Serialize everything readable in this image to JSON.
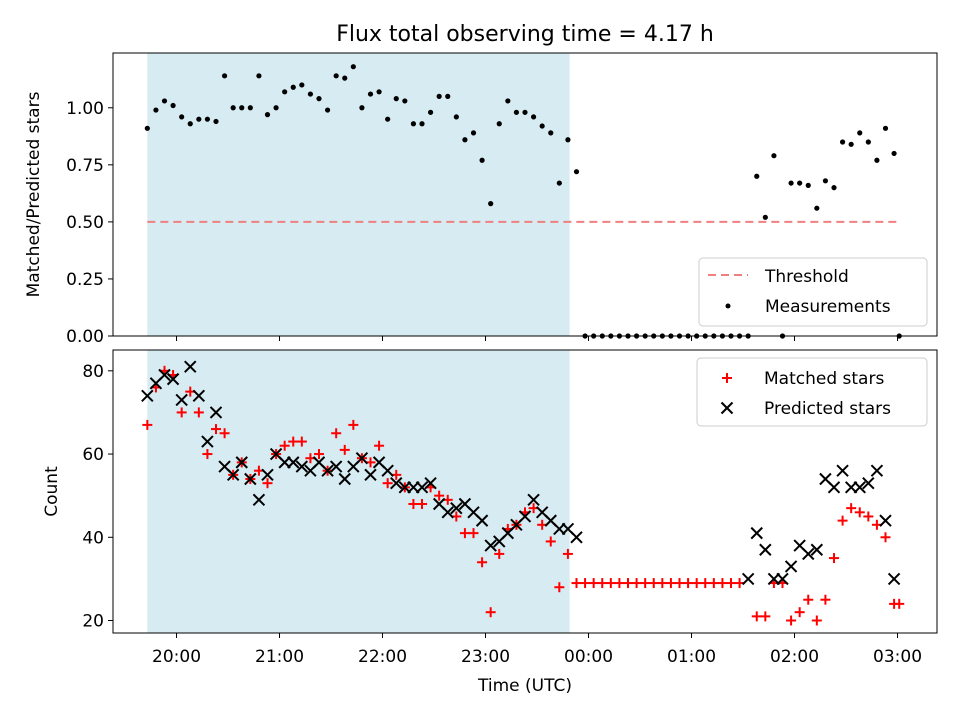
{
  "chart_data": [
    {
      "type": "scatter",
      "title": "Flux total observing time = 4.17 h",
      "xlabel": "",
      "ylabel": "Matched/Predicted stars",
      "ylim": [
        0,
        1.24
      ],
      "xlim": [
        "19:23",
        "03:23"
      ],
      "shaded_span": {
        "start": "19:43",
        "end": "23:49"
      },
      "yticks": [
        "0.00",
        "0.25",
        "0.50",
        "0.75",
        "1.00"
      ],
      "legend_position": "lower-right",
      "legend": [
        "Threshold",
        "Measurements"
      ],
      "threshold": {
        "name": "Threshold",
        "y": 0.5,
        "x_start": "19:43",
        "x_end": "03:01",
        "color": "#f08080"
      },
      "series": [
        {
          "name": "Measurements",
          "marker": "dot",
          "color": "#000000",
          "points": [
            [
              "19:43",
              0.91
            ],
            [
              "19:48",
              0.99
            ],
            [
              "19:53",
              1.03
            ],
            [
              "19:58",
              1.01
            ],
            [
              "20:03",
              0.96
            ],
            [
              "20:08",
              0.93
            ],
            [
              "20:13",
              0.95
            ],
            [
              "20:18",
              0.95
            ],
            [
              "20:23",
              0.94
            ],
            [
              "20:28",
              1.14
            ],
            [
              "20:33",
              1.0
            ],
            [
              "20:38",
              1.0
            ],
            [
              "20:43",
              1.0
            ],
            [
              "20:48",
              1.14
            ],
            [
              "20:53",
              0.97
            ],
            [
              "20:58",
              1.0
            ],
            [
              "21:03",
              1.07
            ],
            [
              "21:08",
              1.09
            ],
            [
              "21:13",
              1.1
            ],
            [
              "21:18",
              1.06
            ],
            [
              "21:23",
              1.04
            ],
            [
              "21:28",
              0.99
            ],
            [
              "21:33",
              1.14
            ],
            [
              "21:38",
              1.13
            ],
            [
              "21:43",
              1.18
            ],
            [
              "21:48",
              1.0
            ],
            [
              "21:53",
              1.06
            ],
            [
              "21:58",
              1.07
            ],
            [
              "22:03",
              0.95
            ],
            [
              "22:08",
              1.04
            ],
            [
              "22:13",
              1.03
            ],
            [
              "22:18",
              0.93
            ],
            [
              "22:23",
              0.93
            ],
            [
              "22:28",
              0.98
            ],
            [
              "22:33",
              1.05
            ],
            [
              "22:38",
              1.05
            ],
            [
              "22:43",
              0.96
            ],
            [
              "22:48",
              0.86
            ],
            [
              "22:53",
              0.89
            ],
            [
              "22:58",
              0.77
            ],
            [
              "23:03",
              0.58
            ],
            [
              "23:08",
              0.93
            ],
            [
              "23:13",
              1.03
            ],
            [
              "23:18",
              0.98
            ],
            [
              "23:23",
              0.98
            ],
            [
              "23:28",
              0.96
            ],
            [
              "23:33",
              0.92
            ],
            [
              "23:38",
              0.89
            ],
            [
              "23:43",
              0.67
            ],
            [
              "23:48",
              0.86
            ],
            [
              "23:53",
              0.72
            ],
            [
              "23:58",
              0.0
            ],
            [
              "00:03",
              0.0
            ],
            [
              "00:08",
              0.0
            ],
            [
              "00:13",
              0.0
            ],
            [
              "00:18",
              0.0
            ],
            [
              "00:23",
              0.0
            ],
            [
              "00:28",
              0.0
            ],
            [
              "00:33",
              0.0
            ],
            [
              "00:38",
              0.0
            ],
            [
              "00:43",
              0.0
            ],
            [
              "00:48",
              0.0
            ],
            [
              "00:53",
              0.0
            ],
            [
              "00:58",
              0.0
            ],
            [
              "01:03",
              0.0
            ],
            [
              "01:08",
              0.0
            ],
            [
              "01:13",
              0.0
            ],
            [
              "01:18",
              0.0
            ],
            [
              "01:23",
              0.0
            ],
            [
              "01:28",
              0.0
            ],
            [
              "01:33",
              0.0
            ],
            [
              "01:38",
              0.7
            ],
            [
              "01:43",
              0.52
            ],
            [
              "01:48",
              0.79
            ],
            [
              "01:53",
              0.0
            ],
            [
              "01:58",
              0.67
            ],
            [
              "02:03",
              0.67
            ],
            [
              "02:08",
              0.66
            ],
            [
              "02:13",
              0.56
            ],
            [
              "02:18",
              0.68
            ],
            [
              "02:23",
              0.65
            ],
            [
              "02:28",
              0.85
            ],
            [
              "02:33",
              0.84
            ],
            [
              "02:38",
              0.89
            ],
            [
              "02:43",
              0.85
            ],
            [
              "02:48",
              0.77
            ],
            [
              "02:53",
              0.91
            ],
            [
              "02:58",
              0.8
            ],
            [
              "03:01",
              0.0
            ]
          ]
        }
      ]
    },
    {
      "type": "scatter",
      "title": "",
      "xlabel": "Time (UTC)",
      "ylabel": "Count",
      "ylim": [
        17,
        85
      ],
      "xlim": [
        "19:23",
        "03:23"
      ],
      "shaded_span": {
        "start": "19:43",
        "end": "23:49"
      },
      "xticks": [
        "20:00",
        "21:00",
        "22:00",
        "23:00",
        "00:00",
        "01:00",
        "02:00",
        "03:00"
      ],
      "yticks": [
        "20",
        "40",
        "60",
        "80"
      ],
      "legend_position": "upper-right",
      "legend": [
        "Matched stars",
        "Predicted stars"
      ],
      "series": [
        {
          "name": "Matched stars",
          "marker": "plus",
          "color": "#ff0000",
          "points": [
            [
              "19:43",
              67
            ],
            [
              "19:48",
              76
            ],
            [
              "19:53",
              80
            ],
            [
              "19:58",
              79
            ],
            [
              "20:03",
              70
            ],
            [
              "20:08",
              75
            ],
            [
              "20:13",
              70
            ],
            [
              "20:18",
              60
            ],
            [
              "20:23",
              66
            ],
            [
              "20:28",
              65
            ],
            [
              "20:33",
              55
            ],
            [
              "20:38",
              58
            ],
            [
              "20:43",
              54
            ],
            [
              "20:48",
              56
            ],
            [
              "20:53",
              53
            ],
            [
              "20:58",
              60
            ],
            [
              "21:03",
              62
            ],
            [
              "21:08",
              63
            ],
            [
              "21:13",
              63
            ],
            [
              "21:18",
              59
            ],
            [
              "21:23",
              60
            ],
            [
              "21:28",
              56
            ],
            [
              "21:33",
              65
            ],
            [
              "21:38",
              61
            ],
            [
              "21:43",
              67
            ],
            [
              "21:48",
              59
            ],
            [
              "21:53",
              58
            ],
            [
              "21:58",
              62
            ],
            [
              "22:03",
              53
            ],
            [
              "22:08",
              55
            ],
            [
              "22:13",
              52
            ],
            [
              "22:18",
              48
            ],
            [
              "22:23",
              48
            ],
            [
              "22:28",
              52
            ],
            [
              "22:33",
              50
            ],
            [
              "22:38",
              49
            ],
            [
              "22:43",
              45
            ],
            [
              "22:48",
              41
            ],
            [
              "22:53",
              41
            ],
            [
              "22:58",
              34
            ],
            [
              "23:03",
              22
            ],
            [
              "23:08",
              36
            ],
            [
              "23:13",
              42
            ],
            [
              "23:18",
              43
            ],
            [
              "23:23",
              46
            ],
            [
              "23:28",
              47
            ],
            [
              "23:33",
              43
            ],
            [
              "23:38",
              39
            ],
            [
              "23:43",
              28
            ],
            [
              "23:48",
              36
            ],
            [
              "23:53",
              29
            ],
            [
              "23:58",
              29
            ],
            [
              "00:03",
              29
            ],
            [
              "00:08",
              29
            ],
            [
              "00:13",
              29
            ],
            [
              "00:18",
              29
            ],
            [
              "00:23",
              29
            ],
            [
              "00:28",
              29
            ],
            [
              "00:33",
              29
            ],
            [
              "00:38",
              29
            ],
            [
              "00:43",
              29
            ],
            [
              "00:48",
              29
            ],
            [
              "00:53",
              29
            ],
            [
              "00:58",
              29
            ],
            [
              "01:03",
              29
            ],
            [
              "01:08",
              29
            ],
            [
              "01:13",
              29
            ],
            [
              "01:18",
              29
            ],
            [
              "01:23",
              29
            ],
            [
              "01:28",
              29
            ],
            [
              "01:38",
              21
            ],
            [
              "01:43",
              21
            ],
            [
              "01:48",
              29
            ],
            [
              "01:53",
              29
            ],
            [
              "01:58",
              20
            ],
            [
              "02:03",
              22
            ],
            [
              "02:08",
              25
            ],
            [
              "02:13",
              20
            ],
            [
              "02:18",
              25
            ],
            [
              "02:23",
              35
            ],
            [
              "02:28",
              44
            ],
            [
              "02:33",
              47
            ],
            [
              "02:38",
              46
            ],
            [
              "02:43",
              45
            ],
            [
              "02:48",
              43
            ],
            [
              "02:53",
              40
            ],
            [
              "02:58",
              24
            ],
            [
              "03:01",
              24
            ]
          ]
        },
        {
          "name": "Predicted stars",
          "marker": "x",
          "color": "#000000",
          "points": [
            [
              "19:43",
              74
            ],
            [
              "19:48",
              77
            ],
            [
              "19:53",
              79
            ],
            [
              "19:58",
              78
            ],
            [
              "20:03",
              73
            ],
            [
              "20:08",
              81
            ],
            [
              "20:13",
              74
            ],
            [
              "20:18",
              63
            ],
            [
              "20:23",
              70
            ],
            [
              "20:28",
              57
            ],
            [
              "20:33",
              55
            ],
            [
              "20:38",
              58
            ],
            [
              "20:43",
              54
            ],
            [
              "20:48",
              49
            ],
            [
              "20:53",
              55
            ],
            [
              "20:58",
              60
            ],
            [
              "21:03",
              58
            ],
            [
              "21:08",
              58
            ],
            [
              "21:13",
              57
            ],
            [
              "21:18",
              56
            ],
            [
              "21:23",
              58
            ],
            [
              "21:28",
              56
            ],
            [
              "21:33",
              57
            ],
            [
              "21:38",
              54
            ],
            [
              "21:43",
              57
            ],
            [
              "21:48",
              59
            ],
            [
              "21:53",
              55
            ],
            [
              "21:58",
              58
            ],
            [
              "22:03",
              56
            ],
            [
              "22:08",
              53
            ],
            [
              "22:13",
              52
            ],
            [
              "22:18",
              52
            ],
            [
              "22:23",
              52
            ],
            [
              "22:28",
              53
            ],
            [
              "22:33",
              48
            ],
            [
              "22:38",
              46
            ],
            [
              "22:43",
              47
            ],
            [
              "22:48",
              48
            ],
            [
              "22:53",
              46
            ],
            [
              "22:58",
              44
            ],
            [
              "23:03",
              38
            ],
            [
              "23:08",
              39
            ],
            [
              "23:13",
              41
            ],
            [
              "23:18",
              43
            ],
            [
              "23:23",
              45
            ],
            [
              "23:28",
              49
            ],
            [
              "23:33",
              46
            ],
            [
              "23:38",
              44
            ],
            [
              "23:43",
              42
            ],
            [
              "23:48",
              42
            ],
            [
              "23:53",
              40
            ],
            [
              "01:33",
              30
            ],
            [
              "01:38",
              41
            ],
            [
              "01:43",
              37
            ],
            [
              "01:48",
              30
            ],
            [
              "01:53",
              30
            ],
            [
              "01:58",
              33
            ],
            [
              "02:03",
              38
            ],
            [
              "02:08",
              36
            ],
            [
              "02:13",
              37
            ],
            [
              "02:18",
              54
            ],
            [
              "02:23",
              52
            ],
            [
              "02:28",
              56
            ],
            [
              "02:33",
              52
            ],
            [
              "02:38",
              52
            ],
            [
              "02:43",
              53
            ],
            [
              "02:48",
              56
            ],
            [
              "02:53",
              44
            ],
            [
              "02:58",
              30
            ]
          ]
        }
      ]
    }
  ],
  "colors": {
    "shade": "#add8e6",
    "threshold": "#f08080",
    "matched": "#ff0000",
    "predicted": "#000000",
    "measurement": "#000000"
  }
}
